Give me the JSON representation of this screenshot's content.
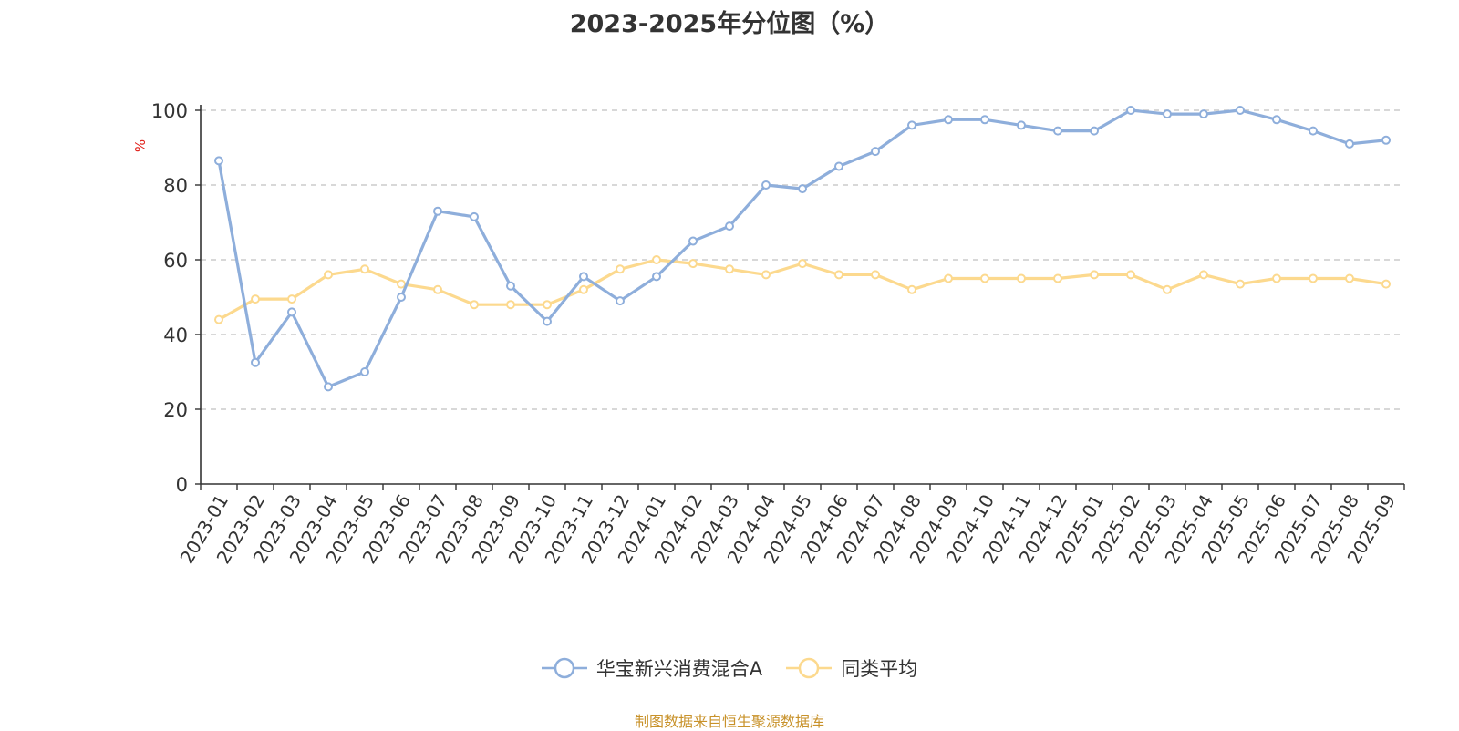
{
  "chart_data": {
    "type": "line",
    "title": "2023-2025年分位图（%）",
    "ylabel": "%",
    "xlabel": "",
    "ylim": [
      0,
      100
    ],
    "yticks": [
      0,
      20,
      40,
      60,
      80,
      100
    ],
    "grid": true,
    "legend_position": "bottom",
    "categories": [
      "2023-01",
      "2023-02",
      "2023-03",
      "2023-04",
      "2023-05",
      "2023-06",
      "2023-07",
      "2023-08",
      "2023-09",
      "2023-10",
      "2023-11",
      "2023-12",
      "2024-01",
      "2024-02",
      "2024-03",
      "2024-04",
      "2024-05",
      "2024-06",
      "2024-07",
      "2024-08",
      "2024-09",
      "2024-10",
      "2024-11",
      "2024-12",
      "2025-01",
      "2025-02",
      "2025-03",
      "2025-04",
      "2025-05",
      "2025-06",
      "2025-07",
      "2025-08",
      "2025-09"
    ],
    "series": [
      {
        "name": "华宝新兴消费混合A",
        "color": "#8eaedb",
        "values": [
          86.5,
          32.5,
          46,
          26,
          30,
          50,
          73,
          71.5,
          53,
          43.5,
          55.5,
          49,
          55.5,
          65,
          69,
          80,
          79,
          85,
          89,
          96,
          97.5,
          97.5,
          96,
          94.5,
          94.5,
          100,
          99,
          99,
          100,
          97.5,
          94.5,
          91,
          92
        ]
      },
      {
        "name": "同类平均",
        "color": "#fcd98e",
        "values": [
          44,
          49.5,
          49.5,
          56,
          57.5,
          53.5,
          52,
          48,
          48,
          48,
          52,
          57.5,
          60,
          59,
          57.5,
          56,
          59,
          56,
          56,
          52,
          55,
          55,
          55,
          55,
          56,
          56,
          52,
          56,
          53.5,
          55,
          55,
          55,
          53.5
        ]
      }
    ]
  },
  "footer": {
    "source_text": "制图数据来自恒生聚源数据库"
  }
}
